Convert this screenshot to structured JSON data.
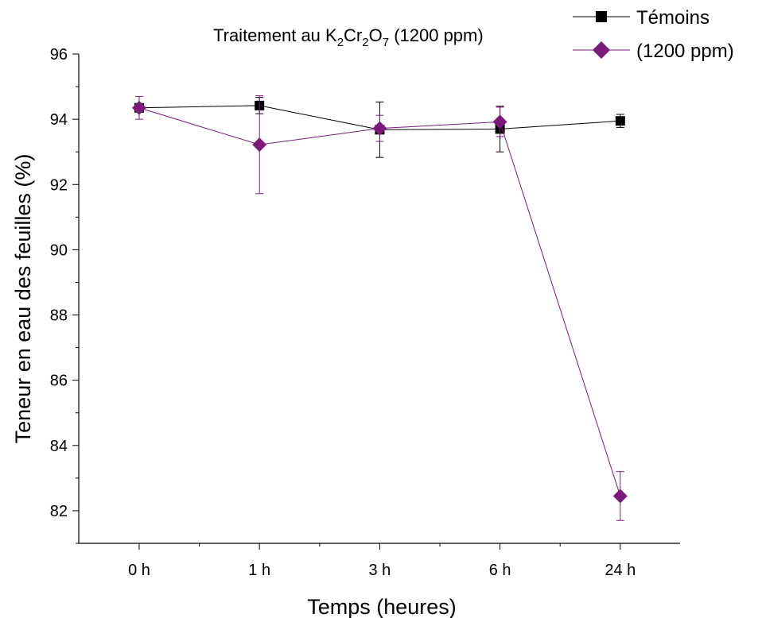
{
  "chart_data": {
    "type": "line",
    "title": {
      "prefix": "Traitement au K",
      "sub1": "2",
      "mid1": "Cr",
      "sub2": "2",
      "mid2": "O",
      "sub3": "7",
      "suffix": " (1200 ppm)"
    },
    "xlabel": "Temps (heures)",
    "ylabel": "Teneur en eau des feuilles (%)",
    "categories": [
      "0 h",
      "1 h",
      "3 h",
      "6 h",
      "24 h"
    ],
    "ylim": [
      81,
      96
    ],
    "yticks": [
      82,
      84,
      86,
      88,
      90,
      92,
      94,
      96
    ],
    "grid": false,
    "legend_position": "top-right",
    "series": [
      {
        "name": "Témoins",
        "marker": "square",
        "color": "#000000",
        "values": [
          94.35,
          94.42,
          93.68,
          93.7,
          93.95
        ],
        "errors": [
          0.1,
          0.25,
          0.85,
          0.7,
          0.2
        ]
      },
      {
        "name": "(1200 ppm)",
        "marker": "diamond",
        "color": "#7B1A7B",
        "values": [
          94.35,
          93.22,
          93.72,
          93.92,
          82.45
        ],
        "errors": [
          0.35,
          1.5,
          0.4,
          0.45,
          0.75
        ]
      }
    ]
  }
}
